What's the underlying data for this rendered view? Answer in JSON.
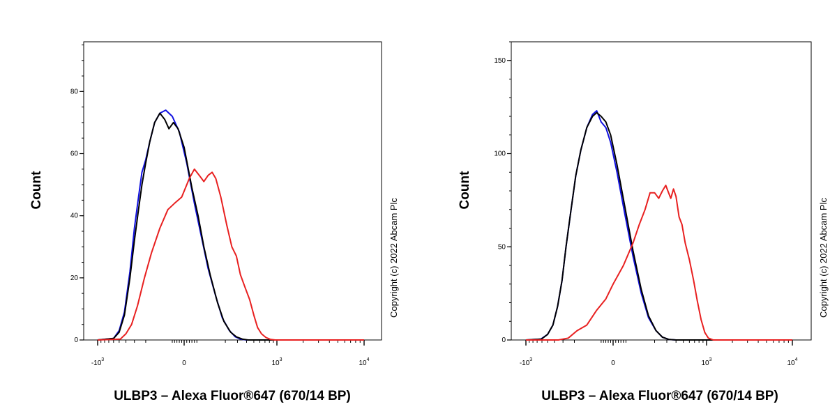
{
  "chart_data": [
    {
      "type": "line",
      "ylabel": "Count",
      "xlabel": "ULBP3 – Alexa Fluor®647 (670/14 BP)",
      "copyright": "Copyright (c) 2022 Abcam Plc",
      "ylim": [
        0,
        96
      ],
      "y_ticks": [
        0,
        20,
        40,
        60,
        80
      ],
      "y_minor_step": 5,
      "x_scale": "biexponential",
      "x_ticks": [
        {
          "value": -1000,
          "base": "-10",
          "exp": "3"
        },
        {
          "value": 0,
          "base": "0",
          "exp": ""
        },
        {
          "value": 1000,
          "base": "10",
          "exp": "3"
        },
        {
          "value": 10000,
          "base": "10",
          "exp": "4"
        }
      ],
      "series": [
        {
          "color": "#1010e0",
          "points": [
            [
              -1000,
              0
            ],
            [
              -600,
              0.5
            ],
            [
              -500,
              3
            ],
            [
              -420,
              9
            ],
            [
              -350,
              22
            ],
            [
              -300,
              36
            ],
            [
              -260,
              46
            ],
            [
              -230,
              54
            ],
            [
              -200,
              58
            ],
            [
              -170,
              64
            ],
            [
              -140,
              70
            ],
            [
              -110,
              73
            ],
            [
              -80,
              74
            ],
            [
              -50,
              72
            ],
            [
              -20,
              67
            ],
            [
              10,
              57
            ],
            [
              40,
              44
            ],
            [
              70,
              33
            ],
            [
              100,
              23
            ],
            [
              140,
              14
            ],
            [
              180,
              7
            ],
            [
              230,
              3
            ],
            [
              280,
              1
            ],
            [
              330,
              0.3
            ],
            [
              400,
              0
            ],
            [
              1000,
              0
            ],
            [
              10000,
              0
            ]
          ]
        },
        {
          "color": "#000000",
          "points": [
            [
              -1000,
              0
            ],
            [
              -600,
              0.5
            ],
            [
              -500,
              2.5
            ],
            [
              -420,
              8
            ],
            [
              -350,
              20
            ],
            [
              -300,
              32
            ],
            [
              -260,
              42
            ],
            [
              -230,
              50
            ],
            [
              -200,
              57
            ],
            [
              -170,
              64
            ],
            [
              -140,
              70
            ],
            [
              -110,
              73
            ],
            [
              -85,
              71
            ],
            [
              -65,
              68
            ],
            [
              -45,
              70
            ],
            [
              -25,
              68
            ],
            [
              0,
              62
            ],
            [
              30,
              49
            ],
            [
              55,
              40
            ],
            [
              80,
              30
            ],
            [
              110,
              21
            ],
            [
              150,
              12
            ],
            [
              190,
              6
            ],
            [
              240,
              2.5
            ],
            [
              290,
              1
            ],
            [
              350,
              0.3
            ],
            [
              420,
              0
            ],
            [
              1000,
              0
            ],
            [
              10000,
              0
            ]
          ]
        },
        {
          "color": "#e82020",
          "points": [
            [
              -1000,
              0
            ],
            [
              -480,
              0.3
            ],
            [
              -400,
              2
            ],
            [
              -330,
              5
            ],
            [
              -270,
              11
            ],
            [
              -210,
              20
            ],
            [
              -160,
              28
            ],
            [
              -110,
              36
            ],
            [
              -70,
              42
            ],
            [
              -40,
              44
            ],
            [
              -10,
              46
            ],
            [
              20,
              52
            ],
            [
              40,
              55
            ],
            [
              60,
              53
            ],
            [
              80,
              51
            ],
            [
              100,
              53
            ],
            [
              120,
              54
            ],
            [
              140,
              52
            ],
            [
              170,
              46
            ],
            [
              210,
              37
            ],
            [
              250,
              30
            ],
            [
              290,
              27
            ],
            [
              330,
              21
            ],
            [
              380,
              17
            ],
            [
              440,
              13
            ],
            [
              500,
              8
            ],
            [
              560,
              4
            ],
            [
              630,
              2
            ],
            [
              720,
              0.8
            ],
            [
              820,
              0.2
            ],
            [
              950,
              0
            ],
            [
              10000,
              0
            ]
          ]
        }
      ]
    },
    {
      "type": "line",
      "ylabel": "Count",
      "xlabel": "ULBP3 – Alexa Fluor®647 (670/14 BP)",
      "copyright": "Copyright (c) 2022 Abcam Plc",
      "ylim": [
        0,
        160
      ],
      "y_ticks": [
        0,
        50,
        100,
        150
      ],
      "y_minor_step": 10,
      "x_scale": "biexponential",
      "x_ticks": [
        {
          "value": -1000,
          "base": "-10",
          "exp": "3"
        },
        {
          "value": 0,
          "base": "0",
          "exp": ""
        },
        {
          "value": 1000,
          "base": "10",
          "exp": "3"
        },
        {
          "value": 10000,
          "base": "10",
          "exp": "4"
        }
      ],
      "series": [
        {
          "color": "#1010e0",
          "points": [
            [
              -1000,
              0
            ],
            [
              -620,
              0.5
            ],
            [
              -500,
              3
            ],
            [
              -420,
              8
            ],
            [
              -360,
              18
            ],
            [
              -310,
              32
            ],
            [
              -270,
              50
            ],
            [
              -230,
              68
            ],
            [
              -190,
              88
            ],
            [
              -155,
              102
            ],
            [
              -120,
              114
            ],
            [
              -90,
              121
            ],
            [
              -70,
              123
            ],
            [
              -50,
              117
            ],
            [
              -30,
              114
            ],
            [
              -10,
              106
            ],
            [
              15,
              90
            ],
            [
              45,
              68
            ],
            [
              80,
              45
            ],
            [
              120,
              25
            ],
            [
              160,
              12
            ],
            [
              210,
              5
            ],
            [
              260,
              1.5
            ],
            [
              320,
              0.3
            ],
            [
              400,
              0
            ],
            [
              1000,
              0
            ],
            [
              10000,
              0
            ]
          ]
        },
        {
          "color": "#000000",
          "points": [
            [
              -1000,
              0
            ],
            [
              -610,
              0.5
            ],
            [
              -500,
              3
            ],
            [
              -420,
              8
            ],
            [
              -360,
              18
            ],
            [
              -310,
              32
            ],
            [
              -270,
              50
            ],
            [
              -230,
              68
            ],
            [
              -190,
              88
            ],
            [
              -155,
              102
            ],
            [
              -120,
              114
            ],
            [
              -90,
              120
            ],
            [
              -70,
              122
            ],
            [
              -50,
              120
            ],
            [
              -30,
              117
            ],
            [
              -10,
              110
            ],
            [
              15,
              94
            ],
            [
              45,
              72
            ],
            [
              80,
              48
            ],
            [
              120,
              27
            ],
            [
              160,
              13
            ],
            [
              210,
              5
            ],
            [
              260,
              1.5
            ],
            [
              320,
              0.3
            ],
            [
              400,
              0
            ],
            [
              1000,
              0
            ],
            [
              10000,
              0
            ]
          ]
        },
        {
          "color": "#e82020",
          "points": [
            [
              -1000,
              0
            ],
            [
              -350,
              0
            ],
            [
              -250,
              1
            ],
            [
              -180,
              5
            ],
            [
              -120,
              8
            ],
            [
              -70,
              16
            ],
            [
              -30,
              22
            ],
            [
              0,
              30
            ],
            [
              40,
              40
            ],
            [
              80,
              52
            ],
            [
              110,
              62
            ],
            [
              140,
              70
            ],
            [
              170,
              79
            ],
            [
              200,
              79
            ],
            [
              230,
              76
            ],
            [
              260,
              80
            ],
            [
              290,
              83
            ],
            [
              310,
              80
            ],
            [
              340,
              76
            ],
            [
              370,
              81
            ],
            [
              400,
              77
            ],
            [
              440,
              66
            ],
            [
              480,
              62
            ],
            [
              530,
              52
            ],
            [
              600,
              43
            ],
            [
              680,
              32
            ],
            [
              760,
              21
            ],
            [
              850,
              11
            ],
            [
              950,
              4
            ],
            [
              1050,
              1
            ],
            [
              1200,
              0
            ],
            [
              10000,
              0
            ]
          ]
        }
      ]
    }
  ]
}
